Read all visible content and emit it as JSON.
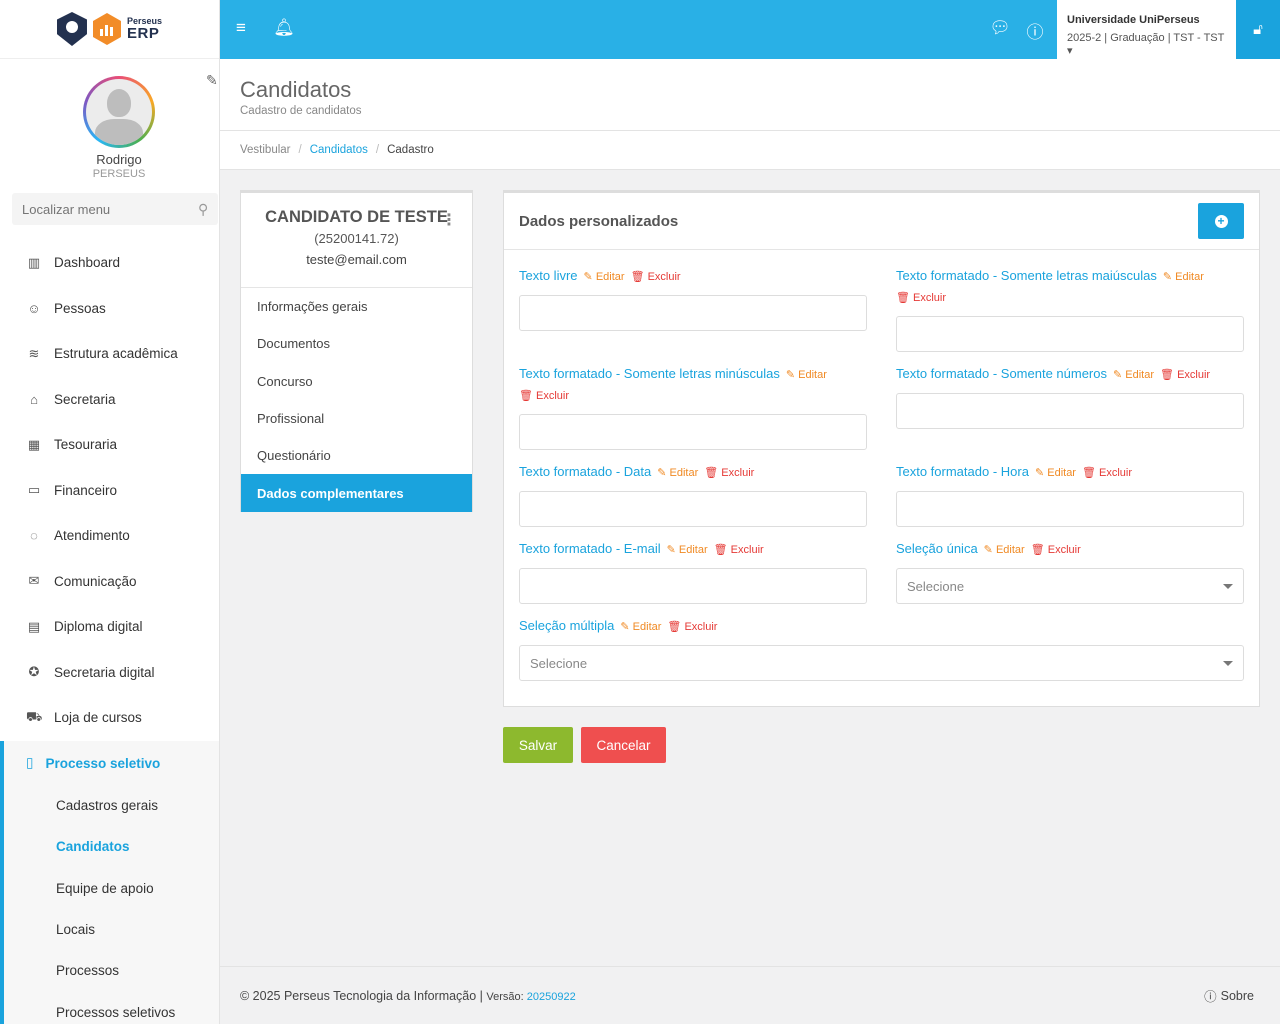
{
  "brand": {
    "small": "Perseus",
    "big": "ERP"
  },
  "user": {
    "name": "Rodrigo",
    "org": "PERSEUS"
  },
  "search": {
    "placeholder": "Localizar menu"
  },
  "menu": [
    {
      "label": "Dashboard",
      "icon": "chart-bar-icon"
    },
    {
      "label": "Pessoas",
      "icon": "users-icon"
    },
    {
      "label": "Estrutura acadêmica",
      "icon": "layers-icon"
    },
    {
      "label": "Secretaria",
      "icon": "graduation-cap-icon"
    },
    {
      "label": "Tesouraria",
      "icon": "calculator-icon"
    },
    {
      "label": "Financeiro",
      "icon": "credit-card-icon"
    },
    {
      "label": "Atendimento",
      "icon": "chat-icon"
    },
    {
      "label": "Comunicação",
      "icon": "envelope-icon"
    },
    {
      "label": "Diploma digital",
      "icon": "book-icon"
    },
    {
      "label": "Secretaria digital",
      "icon": "award-icon"
    },
    {
      "label": "Loja de cursos",
      "icon": "cart-icon"
    }
  ],
  "menu_active": {
    "label": "Processo seletivo",
    "icon": "notebook-icon",
    "items": [
      "Cadastros gerais",
      "Candidatos",
      "Equipe de apoio",
      "Locais",
      "Processos",
      "Processos seletivos"
    ]
  },
  "topbar": {
    "university": "Universidade UniPerseus",
    "period": "2025-2 | Graduação | TST - TST"
  },
  "header": {
    "title": "Candidatos",
    "subtitle": "Cadastro de candidatos"
  },
  "breadcrumb": [
    "Vestibular",
    "Candidatos",
    "Cadastro"
  ],
  "candidate": {
    "name": "CANDIDATO DE TESTE",
    "id": "(25200141.72)",
    "email": "teste@email.com",
    "nav": [
      "Informações gerais",
      "Documentos",
      "Concurso",
      "Profissional",
      "Questionário",
      "Dados complementares"
    ]
  },
  "panel": {
    "title": "Dados personalizados",
    "edit_label": "Editar",
    "delete_label": "Excluir",
    "select_placeholder": "Selecione",
    "fields": [
      "Texto livre",
      "Texto formatado - Somente letras maiúsculas",
      "Texto formatado - Somente letras minúsculas",
      "Texto formatado - Somente números",
      "Texto formatado - Data",
      "Texto formatado - Hora",
      "Texto formatado - E-mail",
      "Seleção única",
      "Seleção múltipla"
    ]
  },
  "buttons": {
    "save": "Salvar",
    "cancel": "Cancelar"
  },
  "footer": {
    "copyright": "© 2025 Perseus Tecnologia da Informação |",
    "version_label": "Versão:",
    "version": "20250922",
    "about": "Sobre"
  },
  "colors": {
    "primary": "#29b0e6",
    "accent": "#1aa3dd",
    "save": "#8db92e",
    "cancel": "#ef4f4f",
    "edit": "#f08a24",
    "delete": "#e53935"
  }
}
